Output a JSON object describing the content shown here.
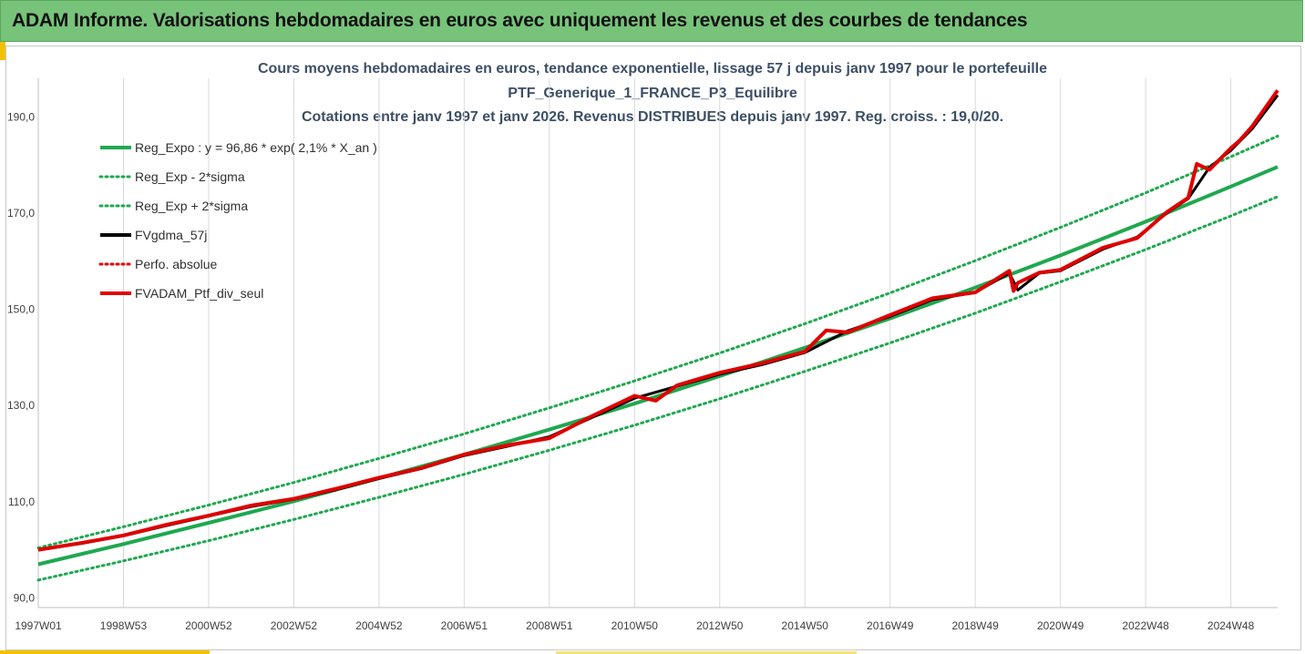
{
  "banner": {
    "title": "ADAM Informe. Valorisations hebdomadaires en euros avec uniquement les revenus et des courbes de tendances"
  },
  "chart_data": {
    "type": "line",
    "title_lines": [
      "Cours moyens hebdomadaires  en euros, tendance exponentielle, lissage 57 j depuis janv 1997 pour le portefeuille",
      "PTF_Generique_1_FRANCE_P3_Equilibre",
      "Cotations entre janv 1997 et janv 2026. Revenus DISTRIBUES depuis janv 1997. Reg. croiss. : 19,0/20."
    ],
    "x_tick_labels": [
      "1997W01",
      "1998W53",
      "2000W52",
      "2002W52",
      "2004W52",
      "2006W51",
      "2008W51",
      "2010W50",
      "2012W50",
      "2014W50",
      "2016W49",
      "2018W49",
      "2020W49",
      "2022W48",
      "2024W48"
    ],
    "x_ticks": [
      1997.0,
      1999.0,
      2001.0,
      2003.0,
      2005.0,
      2007.0,
      2009.0,
      2011.0,
      2013.0,
      2015.0,
      2017.0,
      2019.0,
      2021.0,
      2023.0,
      2025.0
    ],
    "xlim": [
      1997.0,
      2026.1
    ],
    "y_tick_labels": [
      "90,0",
      "110,0",
      "130,0",
      "150,0",
      "170,0",
      "190,0"
    ],
    "y_ticks": [
      90,
      110,
      130,
      150,
      170,
      190
    ],
    "ylim": [
      88,
      198
    ],
    "grid": "vertical",
    "legend_position": "top-left",
    "legend": [
      {
        "label": "Reg_Expo : y = 96,86 * exp( 2,1% *  X_an )",
        "color": "#1fa84f",
        "style": "solid"
      },
      {
        "label": "Reg_Exp - 2*sigma",
        "color": "#1fa84f",
        "style": "dotted"
      },
      {
        "label": "Reg_Exp + 2*sigma",
        "color": "#1fa84f",
        "style": "dotted"
      },
      {
        "label": "FVgdma_57j",
        "color": "#000000",
        "style": "solid"
      },
      {
        "label": "Perfo. absolue",
        "color": "#e00000",
        "style": "dotted"
      },
      {
        "label": "FVADAM_Ptf_div_seul",
        "color": "#e00000",
        "style": "solid"
      }
    ],
    "series": [
      {
        "name": "Reg_Expo : y = 96,86 * exp( 2,1% *  X_an )",
        "color": "#1fa84f",
        "style": "solid",
        "x": [
          1997,
          1999,
          2001,
          2003,
          2005,
          2007,
          2009,
          2011,
          2013,
          2015,
          2017,
          2019,
          2021,
          2023,
          2025,
          2026.1
        ],
        "y": [
          97.0,
          101.2,
          105.6,
          110.1,
          114.9,
          119.8,
          125.0,
          130.4,
          136.1,
          142.0,
          148.1,
          154.5,
          161.2,
          168.2,
          175.5,
          179.6
        ]
      },
      {
        "name": "Reg_Exp - 2*sigma",
        "color": "#1fa84f",
        "style": "dotted",
        "x": [
          1997,
          1999,
          2001,
          2003,
          2005,
          2007,
          2009,
          2011,
          2013,
          2015,
          2017,
          2019,
          2021,
          2023,
          2025,
          2026.1
        ],
        "y": [
          93.7,
          97.7,
          101.9,
          106.3,
          110.9,
          115.7,
          120.7,
          125.9,
          131.4,
          137.1,
          143.0,
          149.2,
          155.7,
          162.4,
          169.4,
          173.4
        ]
      },
      {
        "name": "Reg_Exp + 2*sigma",
        "color": "#1fa84f",
        "style": "dotted",
        "x": [
          1997,
          1999,
          2001,
          2003,
          2005,
          2007,
          2009,
          2011,
          2013,
          2015,
          2017,
          2019,
          2021,
          2023,
          2025,
          2026.1
        ],
        "y": [
          100.4,
          104.8,
          109.3,
          114.0,
          119.0,
          124.1,
          129.5,
          135.1,
          140.9,
          147.0,
          153.4,
          160.1,
          167.0,
          174.2,
          181.7,
          186.0
        ]
      },
      {
        "name": "FVgdma_57j",
        "color": "#000000",
        "style": "solid",
        "x": [
          1997,
          1998,
          1999,
          2000,
          2001,
          2002,
          2003,
          2004,
          2005,
          2006,
          2007,
          2008,
          2009,
          2010,
          2011,
          2012,
          2013,
          2014,
          2015,
          2016,
          2017,
          2018,
          2019,
          2019.8,
          2020.0,
          2020.5,
          2021,
          2022,
          2022.8,
          2023.5,
          2024,
          2024.5,
          2025,
          2025.5,
          2026.1
        ],
        "y": [
          100.0,
          101.3,
          102.9,
          105.0,
          107.0,
          109.0,
          110.5,
          112.5,
          114.8,
          116.9,
          119.6,
          121.5,
          123.5,
          127.5,
          131.5,
          134.0,
          136.5,
          138.5,
          141.0,
          145.5,
          148.5,
          152.0,
          153.5,
          157.5,
          154.0,
          157.5,
          158.0,
          162.5,
          165.0,
          170.0,
          173.0,
          179.5,
          183.0,
          187.5,
          194.5
        ]
      },
      {
        "name": "FVADAM_Ptf_div_seul",
        "color": "#e00000",
        "style": "solid",
        "x": [
          1997,
          1998,
          1999,
          2000,
          2001,
          2002,
          2003,
          2004,
          2005,
          2006,
          2007,
          2008,
          2009,
          2010,
          2011,
          2011.5,
          2012,
          2013,
          2014,
          2015,
          2015.5,
          2016,
          2017,
          2018,
          2019,
          2019.8,
          2019.9,
          2020.0,
          2020.5,
          2021,
          2022,
          2022.8,
          2023.5,
          2024,
          2024.2,
          2024.5,
          2025,
          2025.2,
          2025.5,
          2026.1
        ],
        "y": [
          100.0,
          101.4,
          103.0,
          105.2,
          107.1,
          109.2,
          110.6,
          112.7,
          115.0,
          117.0,
          119.8,
          121.7,
          123.2,
          127.8,
          132.0,
          131.0,
          134.2,
          136.8,
          138.8,
          141.2,
          145.6,
          145.2,
          148.8,
          152.3,
          153.5,
          158.0,
          153.8,
          155.5,
          157.6,
          158.2,
          162.8,
          164.8,
          170.2,
          173.2,
          180.2,
          179.0,
          183.5,
          185.0,
          188.0,
          195.5
        ]
      }
    ]
  }
}
